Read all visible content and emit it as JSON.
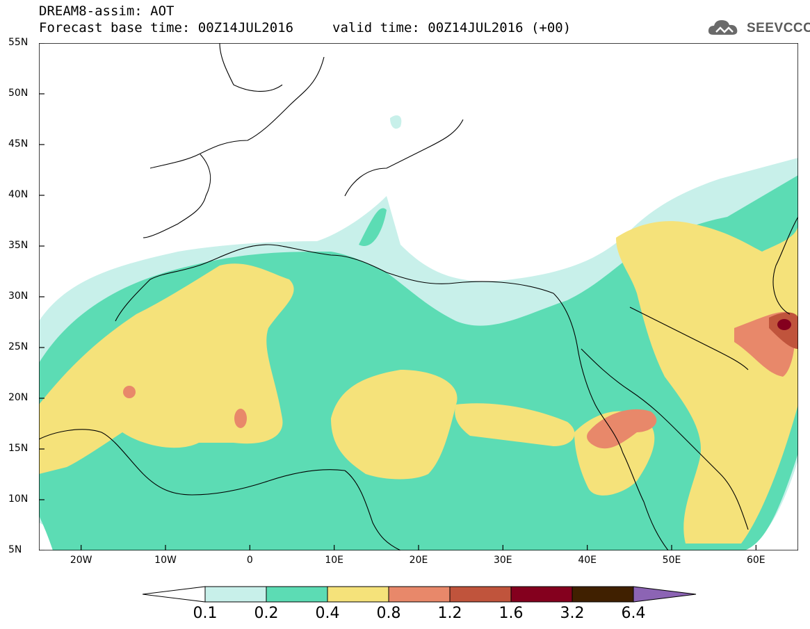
{
  "header": {
    "line1": "DREAM8-assim: AOT",
    "line2_left": "Forecast base time: 00Z14JUL2016",
    "line2_right": "valid time: 00Z14JUL2016 (+00)",
    "logo_text": "SEEVCCC"
  },
  "map": {
    "region": "North Africa, Europe, Middle East",
    "lon_range": [
      -25,
      65
    ],
    "lat_range": [
      5,
      55
    ],
    "lat_ticks": [
      {
        "value": 55,
        "label": "55N"
      },
      {
        "value": 50,
        "label": "50N"
      },
      {
        "value": 45,
        "label": "45N"
      },
      {
        "value": 40,
        "label": "40N"
      },
      {
        "value": 35,
        "label": "35N"
      },
      {
        "value": 30,
        "label": "30N"
      },
      {
        "value": 25,
        "label": "25N"
      },
      {
        "value": 20,
        "label": "20N"
      },
      {
        "value": 15,
        "label": "15N"
      },
      {
        "value": 10,
        "label": "10N"
      },
      {
        "value": 5,
        "label": "5N"
      }
    ],
    "lon_ticks": [
      {
        "value": -20,
        "label": "20W"
      },
      {
        "value": -10,
        "label": "10W"
      },
      {
        "value": 0,
        "label": "0"
      },
      {
        "value": 10,
        "label": "10E"
      },
      {
        "value": 20,
        "label": "20E"
      },
      {
        "value": 30,
        "label": "30E"
      },
      {
        "value": 40,
        "label": "40E"
      },
      {
        "value": 50,
        "label": "50E"
      },
      {
        "value": 60,
        "label": "60E"
      }
    ]
  },
  "colorbar": {
    "colors": [
      "#ffffff",
      "#c8f0ea",
      "#5cdcb4",
      "#f5e27a",
      "#e8886a",
      "#c0543c",
      "#84001e",
      "#402000",
      "#8c64b4"
    ],
    "labels": [
      "0.1",
      "0.2",
      "0.4",
      "0.8",
      "1.2",
      "1.6",
      "3.2",
      "6.4"
    ]
  }
}
